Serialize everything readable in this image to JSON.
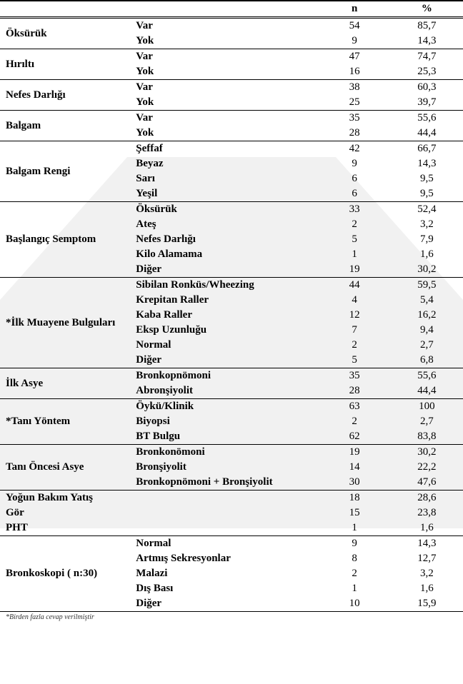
{
  "header": {
    "n": "n",
    "pct": "%"
  },
  "groups": [
    {
      "label": "Öksürük",
      "rows": [
        {
          "sub": "Var",
          "n": "54",
          "pct": "85,7"
        },
        {
          "sub": "Yok",
          "n": "9",
          "pct": "14,3"
        }
      ]
    },
    {
      "label": "Hırıltı",
      "rows": [
        {
          "sub": "Var",
          "n": "47",
          "pct": "74,7"
        },
        {
          "sub": "Yok",
          "n": "16",
          "pct": "25,3"
        }
      ]
    },
    {
      "label": "Nefes Darlığı",
      "rows": [
        {
          "sub": "Var",
          "n": "38",
          "pct": "60,3"
        },
        {
          "sub": "Yok",
          "n": "25",
          "pct": "39,7"
        }
      ]
    },
    {
      "label": "Balgam",
      "rows": [
        {
          "sub": "Var",
          "n": "35",
          "pct": "55,6"
        },
        {
          "sub": "Yok",
          "n": "28",
          "pct": "44,4"
        }
      ]
    },
    {
      "label": "Balgam Rengi",
      "rows": [
        {
          "sub": "Şeffaf",
          "n": "42",
          "pct": "66,7"
        },
        {
          "sub": "Beyaz",
          "n": "9",
          "pct": "14,3"
        },
        {
          "sub": "Sarı",
          "n": "6",
          "pct": "9,5"
        },
        {
          "sub": "Yeşil",
          "n": "6",
          "pct": "9,5"
        }
      ]
    },
    {
      "label": "Başlangıç Semptom",
      "rows": [
        {
          "sub": "Öksürük",
          "n": "33",
          "pct": "52,4"
        },
        {
          "sub": "Ateş",
          "n": "2",
          "pct": "3,2"
        },
        {
          "sub": "Nefes Darlığı",
          "n": "5",
          "pct": "7,9"
        },
        {
          "sub": "Kilo Alamama",
          "n": "1",
          "pct": "1,6"
        },
        {
          "sub": "Diğer",
          "n": "19",
          "pct": "30,2"
        }
      ]
    },
    {
      "label": "*İlk Muayene Bulguları",
      "rows": [
        {
          "sub": "Sibilan Ronküs/Wheezing",
          "n": "44",
          "pct": "59,5"
        },
        {
          "sub": "Krepitan Raller",
          "n": "4",
          "pct": "5,4"
        },
        {
          "sub": "Kaba Raller",
          "n": "12",
          "pct": "16,2"
        },
        {
          "sub": "Eksp Uzunluğu",
          "n": "7",
          "pct": "9,4"
        },
        {
          "sub": "Normal",
          "n": "2",
          "pct": "2,7"
        },
        {
          "sub": "Diğer",
          "n": "5",
          "pct": "6,8"
        }
      ]
    },
    {
      "label": "İlk Asye",
      "rows": [
        {
          "sub": "Bronkopnömoni",
          "n": "35",
          "pct": "55,6"
        },
        {
          "sub": "Abronşiyolit",
          "n": "28",
          "pct": "44,4"
        }
      ]
    },
    {
      "label": "*Tanı Yöntem",
      "rows": [
        {
          "sub": "Öykü/Klinik",
          "n": "63",
          "pct": "100"
        },
        {
          "sub": "Biyopsi",
          "n": "2",
          "pct": "2,7"
        },
        {
          "sub": "BT Bulgu",
          "n": "62",
          "pct": "83,8"
        }
      ]
    },
    {
      "label": "Tanı Öncesi Asye",
      "rows": [
        {
          "sub": "Bronkonömoni",
          "n": "19",
          "pct": "30,2"
        },
        {
          "sub": "Bronşiyolit",
          "n": "14",
          "pct": "22,2"
        },
        {
          "sub": "Bronkopnömoni + Bronşiyolit",
          "n": "30",
          "pct": "47,6"
        }
      ]
    },
    {
      "label_rows": [
        {
          "label": "Yoğun Bakım Yatış",
          "n": "18",
          "pct": "28,6"
        },
        {
          "label": "Gör",
          "n": "15",
          "pct": "23,8"
        },
        {
          "label": "PHT",
          "n": "1",
          "pct": "1,6"
        }
      ]
    },
    {
      "label": "Bronkoskopi ( n:30)",
      "rows": [
        {
          "sub": "Normal",
          "n": "9",
          "pct": "14,3"
        },
        {
          "sub": "Artmış Sekresyonlar",
          "n": "8",
          "pct": "12,7"
        },
        {
          "sub": "Malazi",
          "n": "2",
          "pct": "3,2"
        },
        {
          "sub": "Dış Bası",
          "n": "1",
          "pct": "1,6"
        },
        {
          "sub": "Diğer",
          "n": "10",
          "pct": "15,9"
        }
      ]
    }
  ],
  "footnote": "*Birden fazla cevap verilmiştir",
  "style": {
    "font_family": "Times New Roman",
    "font_size_pt": 11,
    "border_color": "#000000",
    "watermark_color": "#f1f1f1",
    "text_color": "#000000",
    "background_color": "#ffffff"
  }
}
